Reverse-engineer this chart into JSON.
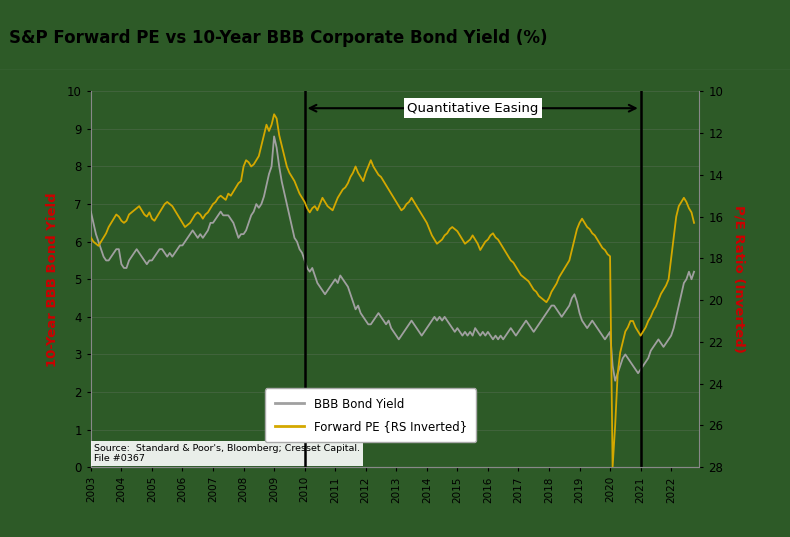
{
  "title": "S&P Forward PE vs 10-Year BBB Corporate Bond Yield (%)",
  "background_color": "#2d5a27",
  "title_bg_color": "#e0e0e0",
  "ylabel_left": "10-Year BBB Bond Yield",
  "ylabel_right": "P/E Ratio (Inverted)",
  "ylabel_left_color": "#cc0000",
  "ylabel_right_color": "#cc0000",
  "ylim_left": [
    0,
    10
  ],
  "yticks_left": [
    0,
    1,
    2,
    3,
    4,
    5,
    6,
    7,
    8,
    9,
    10
  ],
  "yticks_right": [
    10,
    12,
    14,
    16,
    18,
    20,
    22,
    24,
    26,
    28
  ],
  "ylim_right": [
    28,
    10
  ],
  "qe_start": 2010.0,
  "qe_end": 2021.0,
  "qe_label": "Quantitative Easing",
  "source_text": "Source:  Standard & Poor's, Bloomberg; Cresset Capital.\nFile #0367",
  "legend_items": [
    "BBB Bond Yield",
    "Forward PE {RS Inverted}"
  ],
  "legend_colors": [
    "#a0a0a0",
    "#d4a800"
  ],
  "bbb_color": "#a0a0a0",
  "pe_color": "#d4a800",
  "dates": [
    2003.0,
    2003.083,
    2003.167,
    2003.25,
    2003.333,
    2003.417,
    2003.5,
    2003.583,
    2003.667,
    2003.75,
    2003.833,
    2003.917,
    2004.0,
    2004.083,
    2004.167,
    2004.25,
    2004.333,
    2004.417,
    2004.5,
    2004.583,
    2004.667,
    2004.75,
    2004.833,
    2004.917,
    2005.0,
    2005.083,
    2005.167,
    2005.25,
    2005.333,
    2005.417,
    2005.5,
    2005.583,
    2005.667,
    2005.75,
    2005.833,
    2005.917,
    2006.0,
    2006.083,
    2006.167,
    2006.25,
    2006.333,
    2006.417,
    2006.5,
    2006.583,
    2006.667,
    2006.75,
    2006.833,
    2006.917,
    2007.0,
    2007.083,
    2007.167,
    2007.25,
    2007.333,
    2007.417,
    2007.5,
    2007.583,
    2007.667,
    2007.75,
    2007.833,
    2007.917,
    2008.0,
    2008.083,
    2008.167,
    2008.25,
    2008.333,
    2008.417,
    2008.5,
    2008.583,
    2008.667,
    2008.75,
    2008.833,
    2008.917,
    2009.0,
    2009.083,
    2009.167,
    2009.25,
    2009.333,
    2009.417,
    2009.5,
    2009.583,
    2009.667,
    2009.75,
    2009.833,
    2009.917,
    2010.0,
    2010.083,
    2010.167,
    2010.25,
    2010.333,
    2010.417,
    2010.5,
    2010.583,
    2010.667,
    2010.75,
    2010.833,
    2010.917,
    2011.0,
    2011.083,
    2011.167,
    2011.25,
    2011.333,
    2011.417,
    2011.5,
    2011.583,
    2011.667,
    2011.75,
    2011.833,
    2011.917,
    2012.0,
    2012.083,
    2012.167,
    2012.25,
    2012.333,
    2012.417,
    2012.5,
    2012.583,
    2012.667,
    2012.75,
    2012.833,
    2012.917,
    2013.0,
    2013.083,
    2013.167,
    2013.25,
    2013.333,
    2013.417,
    2013.5,
    2013.583,
    2013.667,
    2013.75,
    2013.833,
    2013.917,
    2014.0,
    2014.083,
    2014.167,
    2014.25,
    2014.333,
    2014.417,
    2014.5,
    2014.583,
    2014.667,
    2014.75,
    2014.833,
    2014.917,
    2015.0,
    2015.083,
    2015.167,
    2015.25,
    2015.333,
    2015.417,
    2015.5,
    2015.583,
    2015.667,
    2015.75,
    2015.833,
    2015.917,
    2016.0,
    2016.083,
    2016.167,
    2016.25,
    2016.333,
    2016.417,
    2016.5,
    2016.583,
    2016.667,
    2016.75,
    2016.833,
    2016.917,
    2017.0,
    2017.083,
    2017.167,
    2017.25,
    2017.333,
    2017.417,
    2017.5,
    2017.583,
    2017.667,
    2017.75,
    2017.833,
    2017.917,
    2018.0,
    2018.083,
    2018.167,
    2018.25,
    2018.333,
    2018.417,
    2018.5,
    2018.583,
    2018.667,
    2018.75,
    2018.833,
    2018.917,
    2019.0,
    2019.083,
    2019.167,
    2019.25,
    2019.333,
    2019.417,
    2019.5,
    2019.583,
    2019.667,
    2019.75,
    2019.833,
    2019.917,
    2020.0,
    2020.083,
    2020.167,
    2020.25,
    2020.333,
    2020.417,
    2020.5,
    2020.583,
    2020.667,
    2020.75,
    2020.833,
    2020.917,
    2021.0,
    2021.083,
    2021.167,
    2021.25,
    2021.333,
    2021.417,
    2021.5,
    2021.583,
    2021.667,
    2021.75,
    2021.833,
    2021.917,
    2022.0,
    2022.083,
    2022.167,
    2022.25,
    2022.333,
    2022.417,
    2022.5,
    2022.583,
    2022.667,
    2022.75
  ],
  "bbb_yield": [
    6.8,
    6.5,
    6.2,
    6.0,
    5.8,
    5.6,
    5.5,
    5.5,
    5.6,
    5.7,
    5.8,
    5.8,
    5.4,
    5.3,
    5.3,
    5.5,
    5.6,
    5.7,
    5.8,
    5.7,
    5.6,
    5.5,
    5.4,
    5.5,
    5.5,
    5.6,
    5.7,
    5.8,
    5.8,
    5.7,
    5.6,
    5.7,
    5.6,
    5.7,
    5.8,
    5.9,
    5.9,
    6.0,
    6.1,
    6.2,
    6.3,
    6.2,
    6.1,
    6.2,
    6.1,
    6.2,
    6.3,
    6.5,
    6.5,
    6.6,
    6.7,
    6.8,
    6.7,
    6.7,
    6.7,
    6.6,
    6.5,
    6.3,
    6.1,
    6.2,
    6.2,
    6.3,
    6.5,
    6.7,
    6.8,
    7.0,
    6.9,
    7.0,
    7.2,
    7.5,
    7.8,
    8.0,
    8.8,
    8.5,
    8.0,
    7.6,
    7.3,
    7.0,
    6.7,
    6.4,
    6.1,
    6.0,
    5.8,
    5.7,
    5.5,
    5.3,
    5.2,
    5.3,
    5.1,
    4.9,
    4.8,
    4.7,
    4.6,
    4.7,
    4.8,
    4.9,
    5.0,
    4.9,
    5.1,
    5.0,
    4.9,
    4.8,
    4.6,
    4.4,
    4.2,
    4.3,
    4.1,
    4.0,
    3.9,
    3.8,
    3.8,
    3.9,
    4.0,
    4.1,
    4.0,
    3.9,
    3.8,
    3.9,
    3.7,
    3.6,
    3.5,
    3.4,
    3.5,
    3.6,
    3.7,
    3.8,
    3.9,
    3.8,
    3.7,
    3.6,
    3.5,
    3.6,
    3.7,
    3.8,
    3.9,
    4.0,
    3.9,
    4.0,
    3.9,
    4.0,
    3.9,
    3.8,
    3.7,
    3.6,
    3.7,
    3.6,
    3.5,
    3.6,
    3.5,
    3.6,
    3.5,
    3.7,
    3.6,
    3.5,
    3.6,
    3.5,
    3.6,
    3.5,
    3.4,
    3.5,
    3.4,
    3.5,
    3.4,
    3.5,
    3.6,
    3.7,
    3.6,
    3.5,
    3.6,
    3.7,
    3.8,
    3.9,
    3.8,
    3.7,
    3.6,
    3.7,
    3.8,
    3.9,
    4.0,
    4.1,
    4.2,
    4.3,
    4.3,
    4.2,
    4.1,
    4.0,
    4.1,
    4.2,
    4.3,
    4.5,
    4.6,
    4.4,
    4.1,
    3.9,
    3.8,
    3.7,
    3.8,
    3.9,
    3.8,
    3.7,
    3.6,
    3.5,
    3.4,
    3.5,
    3.6,
    2.7,
    2.3,
    2.5,
    2.7,
    2.9,
    3.0,
    2.9,
    2.8,
    2.7,
    2.6,
    2.5,
    2.6,
    2.7,
    2.8,
    2.9,
    3.1,
    3.2,
    3.3,
    3.4,
    3.3,
    3.2,
    3.3,
    3.4,
    3.5,
    3.7,
    4.0,
    4.3,
    4.6,
    4.9,
    5.0,
    5.2,
    5.0,
    5.2
  ],
  "forward_pe": [
    17.0,
    17.2,
    17.3,
    17.4,
    17.2,
    17.0,
    16.8,
    16.5,
    16.3,
    16.1,
    15.9,
    16.0,
    16.2,
    16.3,
    16.2,
    15.9,
    15.8,
    15.7,
    15.6,
    15.5,
    15.7,
    15.9,
    16.0,
    15.8,
    16.1,
    16.2,
    16.0,
    15.8,
    15.6,
    15.4,
    15.3,
    15.4,
    15.5,
    15.7,
    15.9,
    16.1,
    16.3,
    16.5,
    16.4,
    16.3,
    16.1,
    15.9,
    15.8,
    15.9,
    16.1,
    15.9,
    15.8,
    15.6,
    15.4,
    15.3,
    15.1,
    15.0,
    15.1,
    15.2,
    14.9,
    15.0,
    14.8,
    14.6,
    14.4,
    14.3,
    13.6,
    13.3,
    13.4,
    13.6,
    13.5,
    13.3,
    13.1,
    12.6,
    12.1,
    11.6,
    11.9,
    11.6,
    11.1,
    11.3,
    12.1,
    12.6,
    13.1,
    13.6,
    13.9,
    14.1,
    14.3,
    14.6,
    14.9,
    15.1,
    15.3,
    15.6,
    15.8,
    15.6,
    15.5,
    15.7,
    15.4,
    15.1,
    15.3,
    15.5,
    15.6,
    15.7,
    15.4,
    15.1,
    14.9,
    14.7,
    14.6,
    14.4,
    14.1,
    13.9,
    13.6,
    13.9,
    14.1,
    14.3,
    13.9,
    13.6,
    13.3,
    13.6,
    13.8,
    14.0,
    14.1,
    14.3,
    14.5,
    14.7,
    14.9,
    15.1,
    15.3,
    15.5,
    15.7,
    15.6,
    15.4,
    15.3,
    15.1,
    15.3,
    15.5,
    15.7,
    15.9,
    16.1,
    16.3,
    16.6,
    16.9,
    17.1,
    17.3,
    17.2,
    17.1,
    16.9,
    16.8,
    16.6,
    16.5,
    16.6,
    16.7,
    16.9,
    17.1,
    17.3,
    17.2,
    17.1,
    16.9,
    17.1,
    17.3,
    17.6,
    17.4,
    17.2,
    17.1,
    16.9,
    16.8,
    17.0,
    17.1,
    17.3,
    17.5,
    17.7,
    17.9,
    18.1,
    18.2,
    18.4,
    18.6,
    18.8,
    18.9,
    19.0,
    19.1,
    19.3,
    19.5,
    19.6,
    19.8,
    19.9,
    20.0,
    20.1,
    19.9,
    19.6,
    19.4,
    19.2,
    18.9,
    18.7,
    18.5,
    18.3,
    18.1,
    17.6,
    17.1,
    16.6,
    16.3,
    16.1,
    16.3,
    16.5,
    16.6,
    16.8,
    16.9,
    17.1,
    17.3,
    17.5,
    17.6,
    17.8,
    17.9,
    28.0,
    26.0,
    23.5,
    22.5,
    22.0,
    21.5,
    21.3,
    21.0,
    21.0,
    21.3,
    21.5,
    21.7,
    21.5,
    21.3,
    21.0,
    20.8,
    20.5,
    20.3,
    20.0,
    19.7,
    19.5,
    19.3,
    19.0,
    18.0,
    17.0,
    16.0,
    15.5,
    15.3,
    15.1,
    15.3,
    15.6,
    15.8,
    16.3
  ],
  "xlim": [
    2003.0,
    2022.917
  ],
  "xticks": [
    2003,
    2004,
    2005,
    2006,
    2007,
    2008,
    2009,
    2010,
    2011,
    2012,
    2013,
    2014,
    2015,
    2016,
    2017,
    2018,
    2019,
    2020,
    2021,
    2022
  ]
}
